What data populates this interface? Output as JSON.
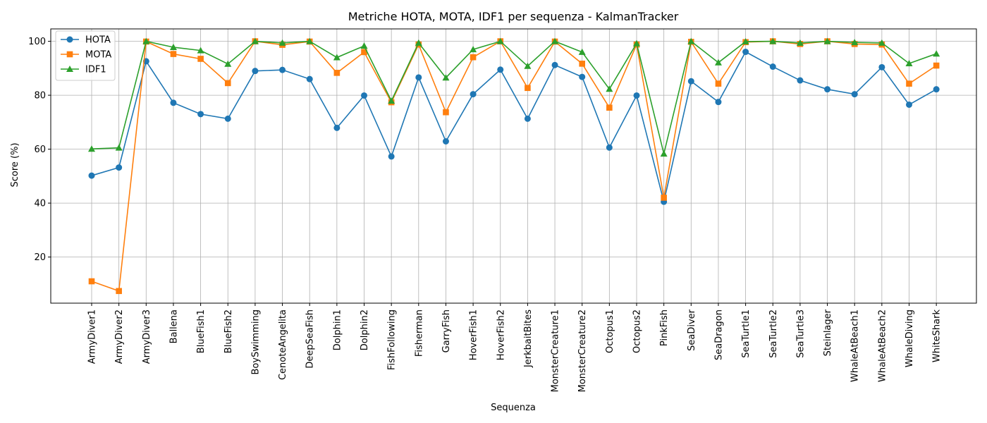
{
  "chart_data": {
    "type": "line",
    "title": "Metriche HOTA, MOTA, IDF1 per sequenza - KalmanTracker",
    "xlabel": "Sequenza",
    "ylabel": "Score (%)",
    "ylim": [
      2.9,
      104.6
    ],
    "yticks": [
      20,
      40,
      60,
      80,
      100
    ],
    "grid": true,
    "legend_position": "top-left",
    "categories": [
      "ArmyDiver1",
      "ArmyDiver2",
      "ArmyDiver3",
      "Ballena",
      "BlueFish1",
      "BlueFish2",
      "BoySwimming",
      "CenoteAngelita",
      "DeepSeaFish",
      "Dolphin1",
      "Dolphin2",
      "FishFollowing",
      "Fisherman",
      "GarryFish",
      "HoverFish1",
      "HoverFish2",
      "JerkbaitBites",
      "MonsterCreature1",
      "MonsterCreature2",
      "Octopus1",
      "Octopus2",
      "PinkFish",
      "SeaDiver",
      "SeaDragon",
      "SeaTurtle1",
      "SeaTurtle2",
      "SeaTurtle3",
      "Steinlager",
      "WhaleAtBeach1",
      "WhaleAtBeach2",
      "WhaleDiving",
      "WhiteShark"
    ],
    "series": [
      {
        "name": "HOTA",
        "color": "#1f77b4",
        "marker": "circle",
        "values": [
          50.2,
          53.2,
          92.6,
          77.2,
          73.0,
          71.3,
          89.0,
          89.4,
          86.0,
          67.9,
          79.9,
          57.3,
          86.6,
          62.9,
          80.4,
          89.5,
          71.3,
          91.2,
          86.8,
          60.6,
          79.9,
          40.5,
          85.2,
          77.5,
          96.1,
          90.6,
          85.5,
          82.2,
          80.4,
          90.4,
          76.5,
          82.2
        ]
      },
      {
        "name": "MOTA",
        "color": "#ff7f0e",
        "marker": "square",
        "values": [
          11.0,
          7.4,
          99.9,
          95.3,
          93.5,
          84.5,
          100.0,
          98.7,
          99.9,
          88.3,
          96.0,
          77.4,
          98.8,
          73.7,
          94.1,
          100.0,
          82.7,
          99.9,
          91.7,
          75.4,
          98.8,
          42.0,
          99.8,
          84.3,
          99.7,
          100.0,
          99.0,
          100.0,
          99.0,
          98.8,
          84.3,
          91.0
        ]
      },
      {
        "name": "IDF1",
        "color": "#2ca02c",
        "marker": "triangle",
        "values": [
          60.1,
          60.5,
          100.0,
          97.8,
          96.6,
          91.6,
          100.0,
          99.4,
          100.0,
          94.0,
          98.3,
          77.9,
          99.4,
          86.5,
          97.0,
          100.0,
          90.8,
          100.0,
          96.0,
          82.3,
          99.2,
          58.3,
          100.0,
          92.1,
          99.9,
          100.0,
          99.4,
          100.0,
          99.6,
          99.4,
          91.8,
          95.4
        ]
      }
    ]
  }
}
